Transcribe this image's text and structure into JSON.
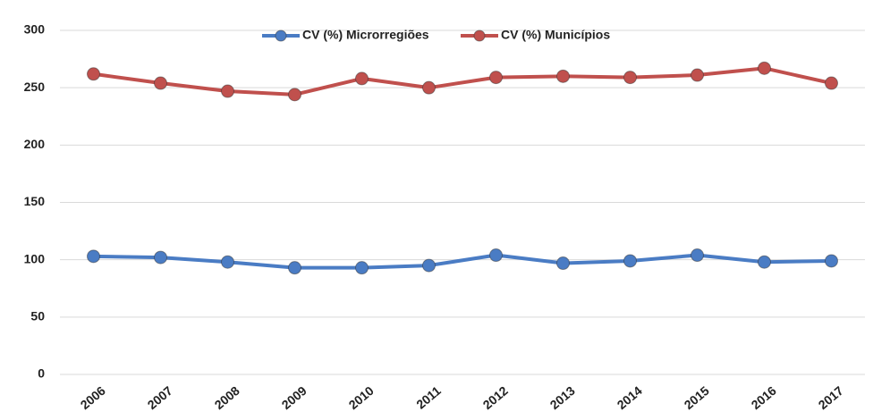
{
  "chart_data": {
    "type": "line",
    "categories": [
      "2006",
      "2007",
      "2008",
      "2009",
      "2010",
      "2011",
      "2012",
      "2013",
      "2014",
      "2015",
      "2016",
      "2017"
    ],
    "series": [
      {
        "name": "CV (%) Microrregiões",
        "color": "#4a7cc4",
        "values": [
          103,
          102,
          98,
          93,
          93,
          95,
          104,
          97,
          99,
          104,
          98,
          99
        ]
      },
      {
        "name": "CV (%) Municípios",
        "color": "#c0504d",
        "values": [
          262,
          254,
          247,
          244,
          258,
          250,
          259,
          260,
          259,
          261,
          267,
          254
        ]
      }
    ],
    "ylim": [
      0,
      300
    ],
    "yticks": [
      0,
      50,
      100,
      150,
      200,
      250,
      300
    ],
    "grid": true
  }
}
